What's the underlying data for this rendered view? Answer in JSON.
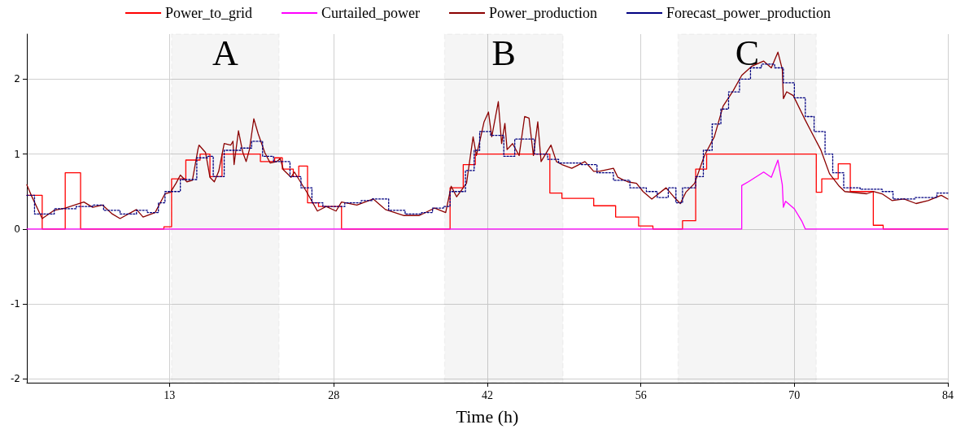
{
  "chart_data": {
    "type": "line",
    "xlabel": "Time (h)",
    "xlim": [
      0,
      84
    ],
    "xticks": [
      13,
      28,
      42,
      56,
      70,
      84
    ],
    "ylim": [
      -2.05,
      2.6
    ],
    "yticks": [
      -2,
      -1,
      0,
      1,
      2
    ],
    "grid": true,
    "legend": "top",
    "marker": "none",
    "series": [
      {
        "name": "Power_to_grid",
        "type": "step",
        "color": "#ff0000",
        "x": [
          0,
          1.4,
          3.5,
          4.9,
          12.5,
          13.2,
          14.5,
          15.8,
          16.7,
          17.8,
          21.3,
          22.6,
          23.3,
          24.3,
          24.8,
          25.6,
          26.6,
          28.7,
          38.6,
          39.8,
          40.9,
          47.7,
          48.8,
          51.7,
          53.7,
          55.8,
          57.1,
          59.8,
          61,
          62,
          72,
          72.5,
          74,
          75.1,
          77.2,
          78.1,
          84
        ],
        "values": [
          0.45,
          0,
          0.75,
          0,
          0.03,
          0.67,
          0.92,
          1.0,
          0.7,
          1.0,
          0.9,
          0.95,
          0.8,
          0.7,
          0.84,
          0.35,
          0.3,
          0,
          0.55,
          0.86,
          1.0,
          0.48,
          0.41,
          0.31,
          0.16,
          0.04,
          0,
          0.11,
          0.8,
          1.0,
          0.49,
          0.67,
          0.87,
          0.5,
          0.05,
          0,
          0
        ]
      },
      {
        "name": "Curtailed_power",
        "color": "#ff00ff",
        "x": [
          0,
          65.2,
          65.2,
          65.8,
          67.2,
          67.9,
          68.5,
          68.9,
          69,
          69.2,
          70,
          70.7,
          71,
          84
        ],
        "values": [
          0,
          0,
          0.58,
          0.63,
          0.76,
          0.69,
          0.92,
          0.59,
          0.29,
          0.37,
          0.27,
          0.1,
          0,
          0
        ]
      },
      {
        "name": "Power_production",
        "color": "#8b0000",
        "x": [
          0,
          0.4,
          1.4,
          2.5,
          3.5,
          5.2,
          6,
          6.9,
          7.8,
          8.5,
          10,
          10.6,
          11.7,
          12.6,
          13.1,
          13.6,
          14,
          14.6,
          15.1,
          15.6,
          15.7,
          16.3,
          16.7,
          17.1,
          17.5,
          18,
          18.6,
          18.8,
          18.9,
          19.3,
          19.7,
          20,
          20.3,
          20.7,
          21.1,
          21.7,
          22.2,
          22.8,
          23.1,
          23.4,
          24.1,
          24.4,
          25.2,
          25.5,
          26.5,
          27.3,
          28.2,
          28.7,
          30.1,
          31.6,
          32.7,
          34.4,
          35.8,
          37.2,
          38.2,
          38.7,
          39.2,
          40.1,
          40.7,
          41,
          41.4,
          41.7,
          42.1,
          42.4,
          43,
          43.3,
          43.6,
          43.8,
          44.3,
          44.9,
          45.4,
          45.8,
          46.2,
          46.6,
          46.9,
          47.8,
          48.3,
          48.8,
          49.7,
          50.9,
          51.7,
          52.2,
          53.5,
          53.9,
          54.8,
          55.6,
          56.2,
          57,
          58.3,
          59,
          59.6,
          60.1,
          60.9,
          61.8,
          62.7,
          63.5,
          64.4,
          65.2,
          66.1,
          67.2,
          67.9,
          68.5,
          68.9,
          69,
          69.3,
          69.9,
          70.9,
          71.5,
          72.4,
          73.2,
          74.1,
          74.6,
          76.6,
          77.2,
          78,
          78.9,
          80,
          81.1,
          82.2,
          83.4,
          84
        ],
        "values": [
          0.59,
          0.45,
          0.14,
          0.25,
          0.28,
          0.36,
          0.29,
          0.32,
          0.2,
          0.14,
          0.26,
          0.16,
          0.22,
          0.47,
          0.49,
          0.61,
          0.72,
          0.63,
          0.65,
          1.06,
          1.12,
          1.02,
          0.69,
          0.63,
          0.77,
          1.14,
          1.12,
          1.17,
          0.86,
          1.31,
          1.02,
          0.9,
          1.06,
          1.47,
          1.27,
          1.02,
          0.88,
          0.9,
          0.94,
          0.79,
          0.69,
          0.76,
          0.57,
          0.5,
          0.24,
          0.3,
          0.24,
          0.36,
          0.32,
          0.4,
          0.26,
          0.18,
          0.18,
          0.28,
          0.22,
          0.57,
          0.43,
          0.61,
          1.23,
          0.98,
          1.23,
          1.43,
          1.56,
          1.23,
          1.7,
          1.14,
          1.41,
          1.06,
          1.14,
          0.98,
          1.5,
          1.48,
          0.98,
          1.43,
          0.9,
          1.12,
          0.9,
          0.86,
          0.81,
          0.9,
          0.77,
          0.77,
          0.81,
          0.69,
          0.63,
          0.61,
          0.5,
          0.4,
          0.55,
          0.43,
          0.34,
          0.49,
          0.61,
          0.98,
          1.23,
          1.64,
          1.84,
          2.05,
          2.17,
          2.24,
          2.15,
          2.36,
          2.13,
          1.74,
          1.83,
          1.78,
          1.48,
          1.31,
          1.06,
          0.74,
          0.57,
          0.5,
          0.47,
          0.5,
          0.47,
          0.38,
          0.4,
          0.34,
          0.38,
          0.45,
          0.4
        ]
      },
      {
        "name": "Forecast_power_production",
        "type": "step",
        "color": "#000080",
        "line_style": "dotted",
        "x": [
          0,
          0.7,
          2.5,
          4.5,
          6,
          7,
          8.5,
          10,
          11,
          12,
          12.6,
          14,
          15.5,
          16.5,
          17,
          18,
          19.5,
          20.5,
          21.5,
          22.5,
          24,
          25,
          26,
          27,
          29,
          30.5,
          31.5,
          33,
          34.5,
          36,
          37,
          38,
          38.6,
          40,
          40.8,
          41.3,
          42.3,
          43.5,
          44.5,
          46.3,
          47.5,
          48.5,
          50.5,
          52,
          53.5,
          55,
          56.5,
          57.5,
          58.5,
          59.2,
          59.8,
          61,
          61.7,
          62.5,
          63.3,
          64,
          65,
          66,
          67,
          68.2,
          69,
          70,
          71,
          71.8,
          72.8,
          73.5,
          74.5,
          76,
          78,
          79,
          81,
          83,
          84
        ],
        "values": [
          0.45,
          0.2,
          0.27,
          0.3,
          0.32,
          0.25,
          0.2,
          0.25,
          0.22,
          0.35,
          0.5,
          0.66,
          0.95,
          0.97,
          0.7,
          1.05,
          1.08,
          1.17,
          0.97,
          0.9,
          0.7,
          0.55,
          0.35,
          0.3,
          0.35,
          0.38,
          0.4,
          0.25,
          0.2,
          0.22,
          0.28,
          0.3,
          0.5,
          0.78,
          1.05,
          1.3,
          1.25,
          0.97,
          1.2,
          1.0,
          0.93,
          0.88,
          0.86,
          0.75,
          0.65,
          0.55,
          0.5,
          0.42,
          0.55,
          0.35,
          0.55,
          0.7,
          1.05,
          1.4,
          1.6,
          1.83,
          2.0,
          2.15,
          2.2,
          2.15,
          1.95,
          1.75,
          1.5,
          1.3,
          1.0,
          0.75,
          0.55,
          0.53,
          0.5,
          0.4,
          0.42,
          0.48,
          0.48
        ]
      }
    ],
    "bands": [
      {
        "axis": "x",
        "from": 13.2,
        "to": 23.0,
        "label": "A",
        "color": "#000000"
      },
      {
        "axis": "x",
        "from": 38.1,
        "to": 48.9,
        "label": "B",
        "color": "#000000"
      },
      {
        "axis": "x",
        "from": 59.4,
        "to": 72.0,
        "label": "C",
        "color": "#000000"
      }
    ]
  }
}
